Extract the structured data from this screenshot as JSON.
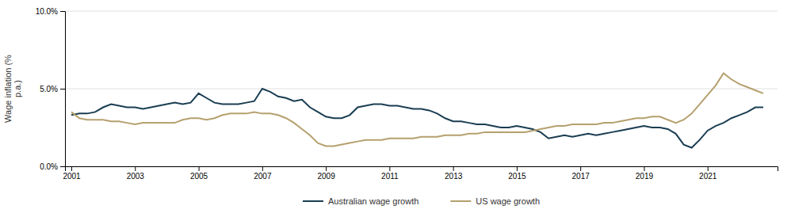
{
  "chart_data": {
    "type": "line",
    "y_label": "Wage inflation (%\np.a.)",
    "x": [
      2001.0,
      2001.25,
      2001.5,
      2001.75,
      2002.0,
      2002.25,
      2002.5,
      2002.75,
      2003.0,
      2003.25,
      2003.5,
      2003.75,
      2004.0,
      2004.25,
      2004.5,
      2004.75,
      2005.0,
      2005.25,
      2005.5,
      2005.75,
      2006.0,
      2006.25,
      2006.5,
      2006.75,
      2007.0,
      2007.25,
      2007.5,
      2007.75,
      2008.0,
      2008.25,
      2008.5,
      2008.75,
      2009.0,
      2009.25,
      2009.5,
      2009.75,
      2010.0,
      2010.25,
      2010.5,
      2010.75,
      2011.0,
      2011.25,
      2011.5,
      2011.75,
      2012.0,
      2012.25,
      2012.5,
      2012.75,
      2013.0,
      2013.25,
      2013.5,
      2013.75,
      2014.0,
      2014.25,
      2014.5,
      2014.75,
      2015.0,
      2015.25,
      2015.5,
      2015.75,
      2016.0,
      2016.25,
      2016.5,
      2016.75,
      2017.0,
      2017.25,
      2017.5,
      2017.75,
      2018.0,
      2018.25,
      2018.5,
      2018.75,
      2019.0,
      2019.25,
      2019.5,
      2019.75,
      2020.0,
      2020.25,
      2020.5,
      2020.75,
      2021.0,
      2021.25,
      2021.5,
      2021.75,
      2022.0,
      2022.25,
      2022.5,
      2022.75
    ],
    "series": [
      {
        "name": "Australian wage growth",
        "color": "#1a3d52",
        "values": [
          0.033,
          0.034,
          0.034,
          0.035,
          0.038,
          0.04,
          0.039,
          0.038,
          0.038,
          0.037,
          0.038,
          0.039,
          0.04,
          0.041,
          0.04,
          0.041,
          0.047,
          0.044,
          0.041,
          0.04,
          0.04,
          0.04,
          0.041,
          0.042,
          0.05,
          0.048,
          0.045,
          0.044,
          0.042,
          0.043,
          0.038,
          0.035,
          0.032,
          0.031,
          0.031,
          0.033,
          0.038,
          0.039,
          0.04,
          0.04,
          0.039,
          0.039,
          0.038,
          0.037,
          0.037,
          0.036,
          0.034,
          0.031,
          0.029,
          0.029,
          0.028,
          0.027,
          0.027,
          0.026,
          0.025,
          0.025,
          0.026,
          0.025,
          0.024,
          0.022,
          0.018,
          0.019,
          0.02,
          0.019,
          0.02,
          0.021,
          0.02,
          0.021,
          0.022,
          0.023,
          0.024,
          0.025,
          0.026,
          0.025,
          0.025,
          0.024,
          0.021,
          0.014,
          0.012,
          0.017,
          0.023,
          0.026,
          0.028,
          0.031,
          0.033,
          0.035,
          0.038,
          0.038
        ]
      },
      {
        "name": "US wage growth",
        "color": "#b5a06e",
        "values": [
          0.035,
          0.031,
          0.03,
          0.03,
          0.03,
          0.029,
          0.029,
          0.028,
          0.027,
          0.028,
          0.028,
          0.028,
          0.028,
          0.028,
          0.03,
          0.031,
          0.031,
          0.03,
          0.031,
          0.033,
          0.034,
          0.034,
          0.034,
          0.035,
          0.034,
          0.034,
          0.033,
          0.031,
          0.028,
          0.024,
          0.02,
          0.015,
          0.013,
          0.013,
          0.014,
          0.015,
          0.016,
          0.017,
          0.017,
          0.017,
          0.018,
          0.018,
          0.018,
          0.018,
          0.019,
          0.019,
          0.019,
          0.02,
          0.02,
          0.02,
          0.021,
          0.021,
          0.022,
          0.022,
          0.022,
          0.022,
          0.022,
          0.022,
          0.023,
          0.024,
          0.025,
          0.026,
          0.026,
          0.027,
          0.027,
          0.027,
          0.027,
          0.028,
          0.028,
          0.029,
          0.03,
          0.031,
          0.031,
          0.032,
          0.032,
          0.03,
          0.028,
          0.03,
          0.034,
          0.04,
          0.046,
          0.052,
          0.06,
          0.056,
          0.053,
          0.051,
          0.049,
          0.047
        ]
      }
    ],
    "xlim": [
      2000.8,
      2023.2
    ],
    "xticks": [
      2001,
      2003,
      2005,
      2007,
      2009,
      2011,
      2013,
      2015,
      2017,
      2019,
      2021
    ],
    "ylim": [
      0.0,
      0.1
    ],
    "yticks": [
      {
        "value": 0.0,
        "label": "0.0%"
      },
      {
        "value": 0.05,
        "label": "5.0%"
      },
      {
        "value": 0.1,
        "label": "10.0%"
      }
    ],
    "grid": true,
    "legend": "bottom"
  }
}
